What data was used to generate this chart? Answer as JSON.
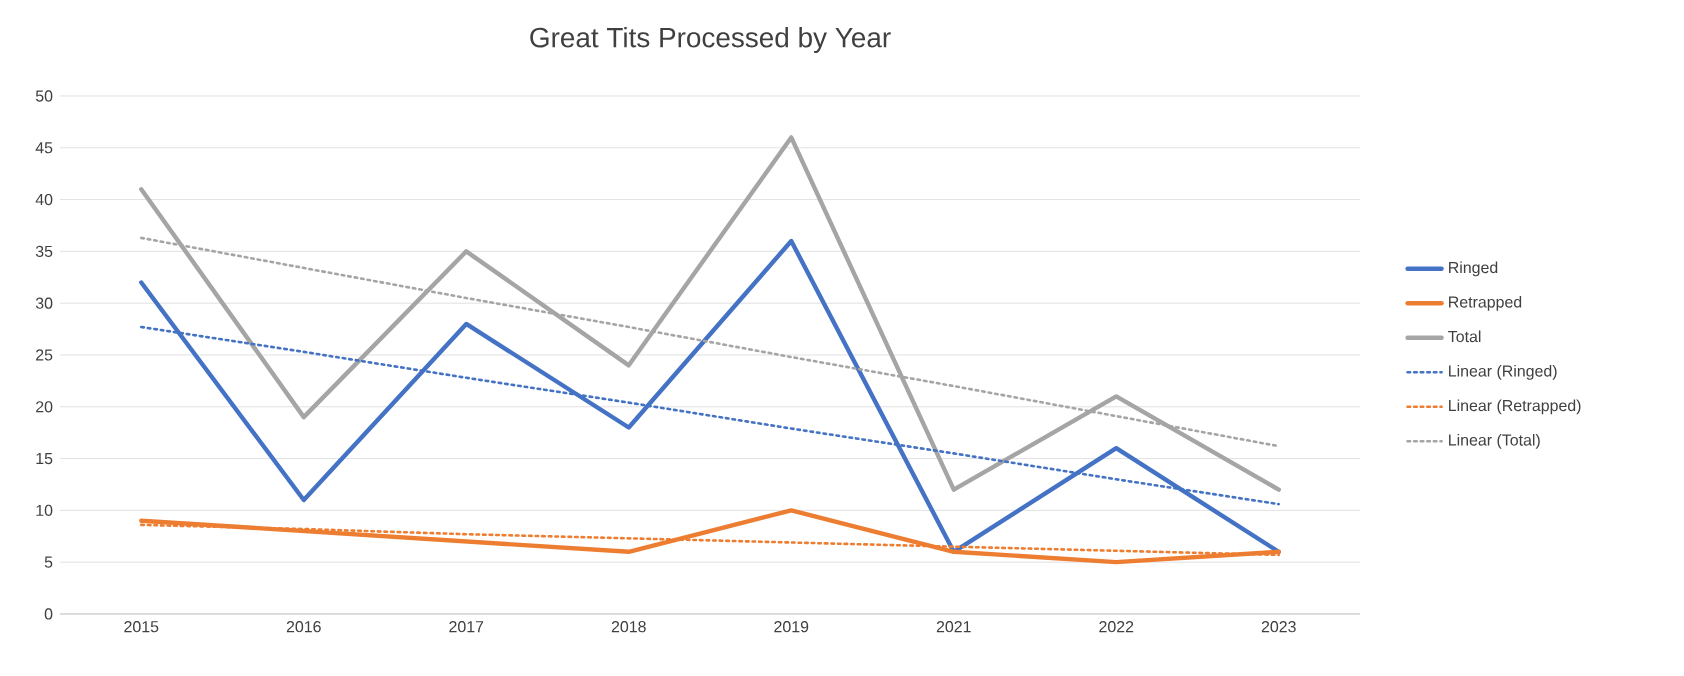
{
  "chart_data": {
    "type": "line",
    "title": "Great Tits Processed by Year",
    "categories": [
      "2015",
      "2016",
      "2017",
      "2018",
      "2019",
      "2021",
      "2022",
      "2023"
    ],
    "series": [
      {
        "name": "Ringed",
        "color": "#4472c4",
        "values": [
          32,
          11,
          28,
          18,
          36,
          6,
          16,
          6
        ]
      },
      {
        "name": "Retrapped",
        "color": "#ed7d31",
        "values": [
          9,
          8,
          7,
          6,
          10,
          6,
          5,
          6
        ]
      },
      {
        "name": "Total",
        "color": "#a5a5a5",
        "values": [
          41,
          19,
          35,
          24,
          46,
          12,
          21,
          12
        ]
      },
      {
        "name": "Linear (Ringed)",
        "color": "#4472c4",
        "line_style": "dotted",
        "values": [
          27.7,
          25.3,
          22.8,
          20.4,
          17.9,
          15.5,
          13.0,
          10.6
        ]
      },
      {
        "name": "Linear (Retrapped)",
        "color": "#ed7d31",
        "line_style": "dotted",
        "values": [
          8.6,
          8.2,
          7.7,
          7.3,
          6.9,
          6.5,
          6.1,
          5.7
        ]
      },
      {
        "name": "Linear (Total)",
        "color": "#a5a5a5",
        "line_style": "dotted",
        "values": [
          36.3,
          33.4,
          30.5,
          27.7,
          24.8,
          22.0,
          19.1,
          16.2
        ]
      }
    ],
    "ylim": [
      0,
      50
    ],
    "yticks": [
      0,
      5,
      10,
      15,
      20,
      25,
      30,
      35,
      40,
      45,
      50
    ],
    "grid": "y",
    "legend": "right",
    "marker": "none",
    "line_style": "solid"
  }
}
